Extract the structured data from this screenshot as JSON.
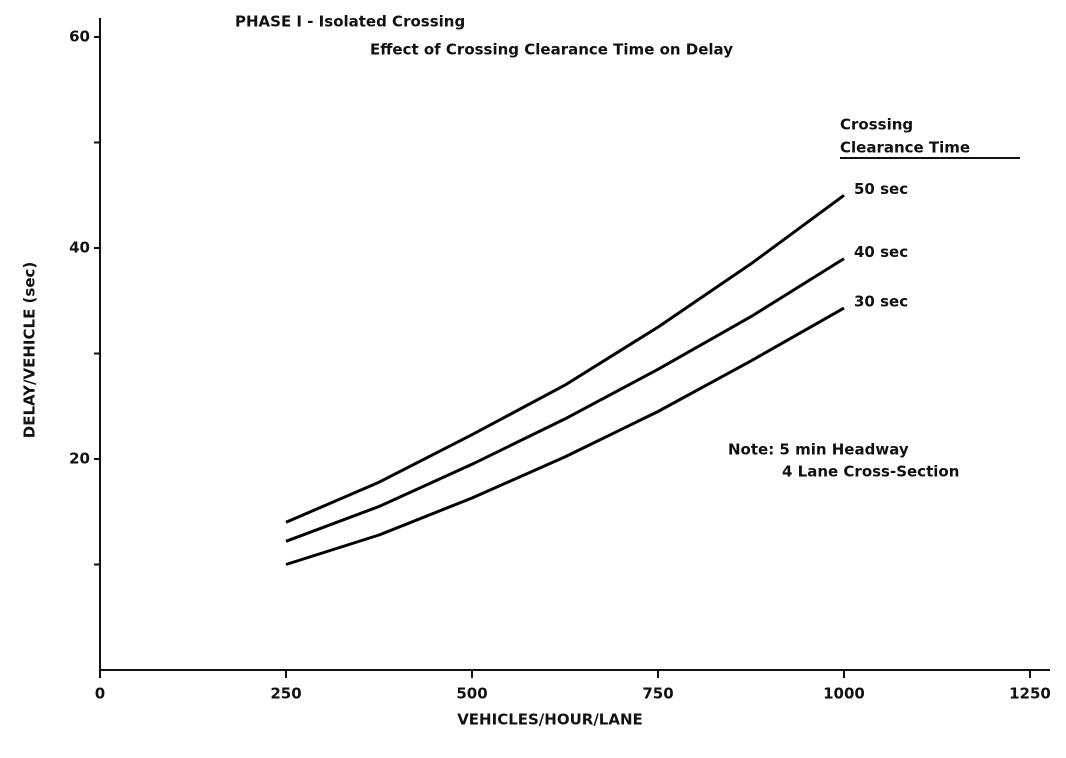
{
  "chart_data": {
    "type": "line",
    "title": "PHASE I - Isolated Crossing",
    "subtitle": "Effect of Crossing Clearance Time on Delay",
    "xlabel": "VEHICLES/HOUR/LANE",
    "ylabel": "DELAY/VEHICLE (sec)",
    "legend_title": [
      "Crossing",
      "Clearance Time"
    ],
    "annotation": [
      "Note: 5 min Headway",
      "4 Lane Cross-Section"
    ],
    "x": [
      250,
      375,
      500,
      625,
      750,
      875,
      1000
    ],
    "series": [
      {
        "name": "50 sec",
        "color": "#000000",
        "values": [
          14,
          17.8,
          22.3,
          27,
          32.5,
          38.5,
          45
        ]
      },
      {
        "name": "40 sec",
        "color": "#000000",
        "values": [
          12.2,
          15.5,
          19.5,
          23.8,
          28.5,
          33.5,
          39
        ]
      },
      {
        "name": "30 sec",
        "color": "#000000",
        "values": [
          10,
          12.8,
          16.3,
          20.2,
          24.5,
          29.3,
          34.3
        ]
      }
    ],
    "xlim": [
      0,
      1250
    ],
    "xticks": [
      0,
      250,
      500,
      750,
      1000,
      1250
    ],
    "ylim": [
      0,
      60
    ],
    "yticks": [
      20,
      40,
      60
    ],
    "yminorticks": [
      10,
      30,
      50
    ],
    "grid": false
  }
}
